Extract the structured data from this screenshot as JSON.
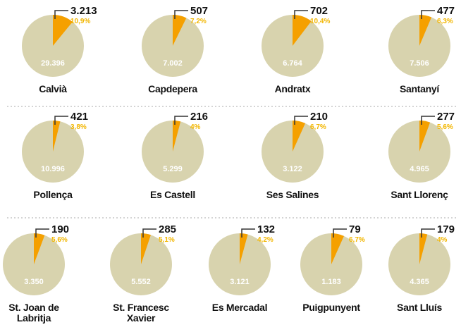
{
  "chart_data": {
    "type": "pie",
    "categories": [
      "Calvià",
      "Capdepera",
      "Andratx",
      "Santanyí",
      "Pollença",
      "Es Castell",
      "Ses Salines",
      "Sant Llorenç",
      "St. Joan de Labritja",
      "St. Francesc Xavier",
      "Es Mercadal",
      "Puigpunyent",
      "Sant Lluís"
    ],
    "values": [
      3213,
      507,
      702,
      477,
      421,
      216,
      210,
      277,
      190,
      285,
      132,
      79,
      179
    ],
    "value_labels": [
      "3.213",
      "507",
      "702",
      "477",
      "421",
      "216",
      "210",
      "277",
      "190",
      "285",
      "132",
      "79",
      "179"
    ],
    "shares": [
      10.9,
      7.2,
      10.4,
      6.3,
      3.8,
      4,
      6.7,
      5.6,
      5.6,
      5.1,
      4.2,
      6.7,
      4
    ],
    "share_labels": [
      "10,9%",
      "7,2%",
      "10,4%",
      "6,3%",
      "3,8%",
      "4%",
      "6,7%",
      "5,6%",
      "5,6%",
      "5,1%",
      "4,2%",
      "6,7%",
      "4%"
    ],
    "totals": [
      29396,
      7002,
      6764,
      7506,
      10996,
      5299,
      3122,
      4965,
      3350,
      5552,
      3121,
      1183,
      4365
    ],
    "total_labels": [
      "29.396",
      "7.002",
      "6.764",
      "7.506",
      "10.996",
      "5.299",
      "3.122",
      "4.965",
      "3.350",
      "5.552",
      "3.121",
      "1.183",
      "4.365"
    ],
    "color": "#f5a000",
    "total_color": "#d8d3ae",
    "share_color": "#f2b600"
  }
}
